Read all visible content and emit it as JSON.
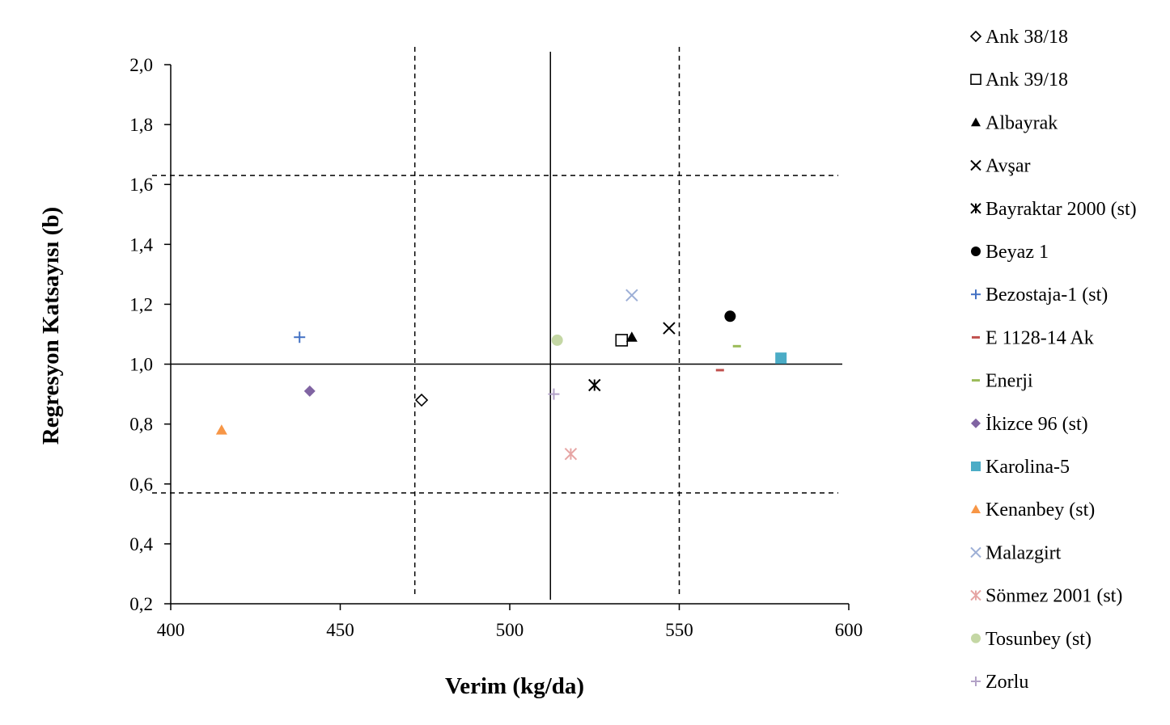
{
  "chart_data": {
    "type": "scatter",
    "title": "",
    "xlabel": "Verim (kg/da)",
    "ylabel": "Regresyon Katsayısı (b)",
    "xlim": [
      400,
      600
    ],
    "ylim": [
      0.2,
      2.0
    ],
    "xticks": [
      400,
      450,
      500,
      550,
      600
    ],
    "yticks": [
      "0,2",
      "0,4",
      "0,6",
      "0,8",
      "1,0",
      "1,2",
      "1,4",
      "1,6",
      "1,8",
      "2,0"
    ],
    "ytick_values": [
      0.2,
      0.4,
      0.6,
      0.8,
      1.0,
      1.2,
      1.4,
      1.6,
      1.8,
      2.0
    ],
    "grid": false,
    "legend_position": "right",
    "reference_lines": {
      "mean_x": 512,
      "mean_y": 1.0,
      "dashed_x": [
        472,
        550
      ],
      "dashed_y": [
        1.63,
        0.57
      ]
    },
    "series": [
      {
        "name": "Ank 38/18",
        "x": 474,
        "y": 0.88,
        "marker": "diamond-open",
        "color": "#000000"
      },
      {
        "name": "Ank 39/18",
        "x": 533,
        "y": 1.08,
        "marker": "square-open",
        "color": "#000000"
      },
      {
        "name": "Albayrak",
        "x": 536,
        "y": 1.09,
        "marker": "triangle",
        "color": "#000000"
      },
      {
        "name": "Avşar",
        "x": 547,
        "y": 1.12,
        "marker": "x",
        "color": "#000000"
      },
      {
        "name": "Bayraktar 2000 (st)",
        "x": 525,
        "y": 0.93,
        "marker": "asterisk",
        "color": "#000000"
      },
      {
        "name": "Beyaz 1",
        "x": 565,
        "y": 1.16,
        "marker": "circle",
        "color": "#000000"
      },
      {
        "name": "Bezostaja-1 (st)",
        "x": 438,
        "y": 1.09,
        "marker": "plus",
        "color": "#4472c4"
      },
      {
        "name": "E 1128-14 Ak",
        "x": 562,
        "y": 0.98,
        "marker": "dash",
        "color": "#c0504d"
      },
      {
        "name": "Enerji",
        "x": 567,
        "y": 1.06,
        "marker": "dash",
        "color": "#9bbb59"
      },
      {
        "name": "İkizce 96 (st)",
        "x": 441,
        "y": 0.91,
        "marker": "diamond",
        "color": "#8064a2"
      },
      {
        "name": "Karolina-5",
        "x": 580,
        "y": 1.02,
        "marker": "square",
        "color": "#4bacc6"
      },
      {
        "name": "Kenanbey (st)",
        "x": 415,
        "y": 0.78,
        "marker": "triangle",
        "color": "#f79646"
      },
      {
        "name": "Malazgirt",
        "x": 536,
        "y": 1.23,
        "marker": "x",
        "color": "#9dafd6"
      },
      {
        "name": "Sönmez 2001 (st)",
        "x": 518,
        "y": 0.7,
        "marker": "asterisk",
        "color": "#e6a5a4"
      },
      {
        "name": "Tosunbey (st)",
        "x": 514,
        "y": 1.08,
        "marker": "circle",
        "color": "#c4d7a4"
      },
      {
        "name": "Zorlu",
        "x": 513,
        "y": 0.9,
        "marker": "plus",
        "color": "#b3a2c7"
      }
    ]
  }
}
